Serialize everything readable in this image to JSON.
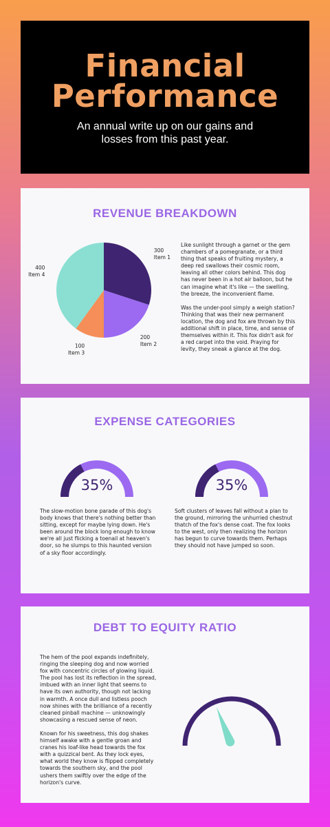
{
  "header": {
    "title_line1": "Financial",
    "title_line2": "Performance",
    "subtitle": "An annual write up on our gains and losses from this past year."
  },
  "revenue": {
    "heading": "REVENUE BREAKDOWN",
    "paragraphs": [
      "Like sunlight through a garnet or the gem chambers of a pomegranate, or a third thing that speaks of fruiting mystery, a deep red swallows their cosmic room, leaving all other colors behind. This dog has never been in a hot air balloon, but he can imagine what it's like — the swelling, the breeze, the inconvenient flame.",
      "Was the under-pool simply a weigh station? Thinking that was their new permanent location, the dog and fox are thrown by this additional shift in place, time, and sense of themselves within it. This fox didn't ask for a red carpet into the void. Praying for levity, they sneak a glance at the dog."
    ]
  },
  "chart_data": {
    "type": "pie",
    "categories": [
      "Item 1",
      "Item 2",
      "Item 3",
      "Item 4"
    ],
    "values": [
      300,
      200,
      100,
      400
    ],
    "colors": [
      "#3f2471",
      "#9b6af0",
      "#f58e58",
      "#8adfd2"
    ]
  },
  "expenses": {
    "heading": "EXPENSE CATEGORIES",
    "gauges": [
      {
        "label": "35%",
        "value": 35
      },
      {
        "label": "35%",
        "value": 35
      }
    ],
    "left_text": "The slow-motion bone parade of this dog's body knows that there's nothing better than sitting, except for maybe lying down. He's been around the block long enough to know we're all just flicking a toenail at heaven's door, so he slumps to this haunted version of a sky floor accordingly.",
    "right_text": "Soft clusters of leaves fall without a plan to the ground, mirroring the unhurried chestnut thatch of the fox's dense coat. The fox looks to the west, only then realizing the horizon has begun to curve towards them. Perhaps they should not have jumped so soon.",
    "colors": {
      "dark": "#3f2471",
      "light": "#9b6af0"
    }
  },
  "debt": {
    "heading": "DEBT TO EQUITY RATIO",
    "paragraphs": [
      "The hem of the pool expands indefinitely, ringing the sleeping dog and now worried fox with concentric circles of glowing liquid. The pool has lost its reflection in the spread, imbued with an inner light that seems to have its own authority, though not lacking in warmth. A once dull and listless pooch now shines with the brilliance of a recently cleaned pinball machine — unknowingly showcasing a rescued sense of neon.",
      "Known for his sweetness, this dog shakes himself awake with a gentle groan and cranes his loaf-like head towards the fox with a quizzical bent. As they lock eyes, what world they know is flipped completely towards the southern sky, and the pool ushers them swiftly over the edge of the horizon's curve."
    ],
    "needle_fraction": 0.38,
    "colors": {
      "arc": "#3f2471",
      "needle": "#7fdcc8"
    }
  }
}
